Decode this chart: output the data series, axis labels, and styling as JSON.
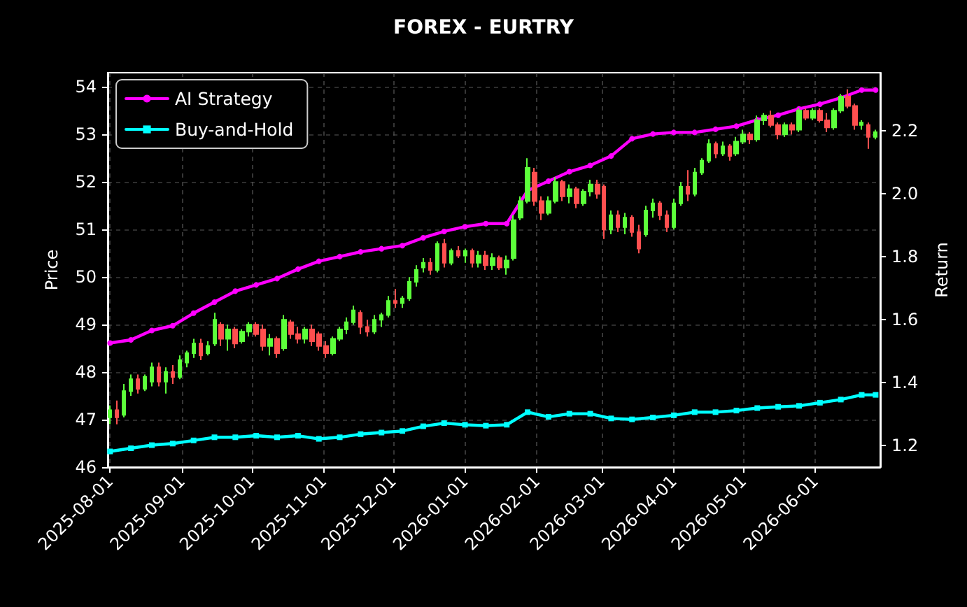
{
  "chart_data": {
    "type": "candlestick",
    "title": "FOREX - EURTRY",
    "ylabel": "Price",
    "y2label": "Return",
    "x": [
      "2025-08-01",
      "2025-08-04",
      "2025-08-07",
      "2025-08-10",
      "2025-08-13",
      "2025-08-16",
      "2025-08-19",
      "2025-08-22",
      "2025-08-25",
      "2025-08-28",
      "2025-08-31",
      "2025-09-03",
      "2025-09-06",
      "2025-09-09",
      "2025-09-12",
      "2025-09-15",
      "2025-09-18",
      "2025-09-21",
      "2025-09-24",
      "2025-09-27",
      "2025-09-30",
      "2025-10-03",
      "2025-10-06",
      "2025-10-09",
      "2025-10-12",
      "2025-10-15",
      "2025-10-18",
      "2025-10-21",
      "2025-10-24",
      "2025-10-27",
      "2025-10-30",
      "2025-11-02",
      "2025-11-05",
      "2025-11-08",
      "2025-11-11",
      "2025-11-14",
      "2025-11-17",
      "2025-11-20",
      "2025-11-23",
      "2025-11-26",
      "2025-11-29",
      "2025-12-02",
      "2025-12-05",
      "2025-12-08",
      "2025-12-11",
      "2025-12-14",
      "2025-12-17",
      "2025-12-20",
      "2025-12-23",
      "2025-12-26",
      "2025-12-29",
      "2026-01-01",
      "2026-01-04",
      "2026-01-07",
      "2026-01-10",
      "2026-01-13",
      "2026-01-16",
      "2026-01-19",
      "2026-01-22",
      "2026-01-25",
      "2026-01-28",
      "2026-01-31",
      "2026-02-03",
      "2026-02-06",
      "2026-02-09",
      "2026-02-12",
      "2026-02-15",
      "2026-02-18",
      "2026-02-21",
      "2026-02-24",
      "2026-02-27",
      "2026-03-02",
      "2026-03-05",
      "2026-03-08",
      "2026-03-11",
      "2026-03-14",
      "2026-03-17",
      "2026-03-20",
      "2026-03-23",
      "2026-03-26",
      "2026-03-29",
      "2026-04-01",
      "2026-04-04",
      "2026-04-07",
      "2026-04-10",
      "2026-04-13",
      "2026-04-16",
      "2026-04-19",
      "2026-04-22",
      "2026-04-25",
      "2026-04-28",
      "2026-05-01",
      "2026-05-04",
      "2026-05-07",
      "2026-05-10",
      "2026-05-13",
      "2026-05-16",
      "2026-05-19",
      "2026-05-22",
      "2026-05-25",
      "2026-05-28",
      "2026-05-31",
      "2026-06-03",
      "2026-06-06",
      "2026-06-09",
      "2026-06-12",
      "2026-06-15",
      "2026-06-18",
      "2026-06-21",
      "2026-06-24",
      "2026-06-27"
    ],
    "xlim": [
      "2025-07-31",
      "2026-06-29"
    ],
    "xticks": [
      "2025-08-01",
      "2025-09-01",
      "2025-10-01",
      "2025-11-01",
      "2025-12-01",
      "2026-01-01",
      "2026-02-01",
      "2026-03-01",
      "2026-04-01",
      "2026-05-01",
      "2026-06-01"
    ],
    "ylim": [
      46,
      54.3
    ],
    "yticks": [
      46,
      47,
      48,
      49,
      50,
      51,
      52,
      53,
      54
    ],
    "y2lim": [
      1.13,
      2.385
    ],
    "y2ticks": [
      1.2,
      1.4,
      1.6,
      1.8,
      {
        "value": 2.0,
        "label": "2.0"
      },
      2.2
    ],
    "grid": true,
    "legend": "top left",
    "series": [
      {
        "ohlc": [
          [
            47.05,
            47.3,
            46.9,
            47.2
          ],
          [
            47.2,
            47.4,
            46.9,
            47.05
          ],
          [
            47.1,
            47.75,
            47.05,
            47.6
          ],
          [
            47.6,
            47.95,
            47.5,
            47.85
          ],
          [
            47.85,
            47.95,
            47.55,
            47.65
          ],
          [
            47.65,
            47.95,
            47.6,
            47.9
          ],
          [
            47.8,
            48.2,
            47.7,
            48.1
          ],
          [
            48.1,
            48.2,
            47.7,
            47.8
          ],
          [
            47.8,
            48.1,
            47.55,
            48.0
          ],
          [
            48.0,
            48.15,
            47.75,
            47.9
          ],
          [
            47.9,
            48.35,
            47.85,
            48.25
          ],
          [
            48.2,
            48.45,
            48.1,
            48.4
          ],
          [
            48.4,
            48.7,
            48.3,
            48.6
          ],
          [
            48.6,
            48.7,
            48.25,
            48.35
          ],
          [
            48.4,
            48.65,
            48.35,
            48.55
          ],
          [
            48.6,
            49.25,
            48.55,
            49.1
          ],
          [
            49.0,
            49.05,
            48.55,
            48.7
          ],
          [
            48.7,
            49.0,
            48.45,
            48.9
          ],
          [
            48.9,
            48.95,
            48.5,
            48.6
          ],
          [
            48.65,
            48.9,
            48.6,
            48.85
          ],
          [
            48.85,
            49.05,
            48.75,
            49.0
          ],
          [
            49.0,
            49.05,
            48.75,
            48.8
          ],
          [
            48.9,
            49.0,
            48.45,
            48.55
          ],
          [
            48.55,
            48.8,
            48.35,
            48.7
          ],
          [
            48.7,
            48.75,
            48.3,
            48.4
          ],
          [
            48.5,
            49.2,
            48.45,
            49.1
          ],
          [
            49.05,
            49.1,
            48.7,
            48.8
          ],
          [
            48.8,
            48.95,
            48.6,
            48.7
          ],
          [
            48.7,
            48.95,
            48.6,
            48.9
          ],
          [
            48.9,
            49.0,
            48.55,
            48.65
          ],
          [
            48.8,
            48.85,
            48.45,
            48.55
          ],
          [
            48.55,
            48.65,
            48.3,
            48.4
          ],
          [
            48.4,
            48.75,
            48.35,
            48.7
          ],
          [
            48.7,
            48.95,
            48.65,
            48.9
          ],
          [
            48.9,
            49.15,
            48.8,
            49.05
          ],
          [
            49.05,
            49.4,
            49.0,
            49.3
          ],
          [
            49.25,
            49.3,
            48.8,
            48.95
          ],
          [
            48.95,
            49.1,
            48.75,
            48.85
          ],
          [
            48.85,
            49.2,
            48.8,
            49.1
          ],
          [
            49.1,
            49.25,
            48.95,
            49.2
          ],
          [
            49.2,
            49.6,
            49.15,
            49.5
          ],
          [
            49.5,
            49.75,
            49.35,
            49.45
          ],
          [
            49.45,
            49.6,
            49.35,
            49.55
          ],
          [
            49.55,
            50.0,
            49.5,
            49.9
          ],
          [
            49.9,
            50.25,
            49.8,
            50.15
          ],
          [
            50.2,
            50.4,
            50.1,
            50.3
          ],
          [
            50.3,
            50.4,
            50.05,
            50.15
          ],
          [
            50.15,
            50.75,
            50.1,
            50.7
          ],
          [
            50.7,
            50.8,
            50.2,
            50.3
          ],
          [
            50.3,
            50.6,
            50.25,
            50.55
          ],
          [
            50.55,
            50.65,
            50.4,
            50.45
          ],
          [
            50.45,
            50.6,
            50.3,
            50.55
          ],
          [
            50.55,
            50.6,
            50.2,
            50.3
          ],
          [
            50.3,
            50.55,
            50.2,
            50.45
          ],
          [
            50.45,
            50.55,
            50.15,
            50.25
          ],
          [
            50.25,
            50.5,
            50.15,
            50.4
          ],
          [
            50.4,
            50.45,
            50.15,
            50.2
          ],
          [
            50.2,
            50.45,
            50.05,
            50.35
          ],
          [
            50.4,
            51.3,
            50.35,
            51.2
          ],
          [
            51.25,
            51.7,
            51.2,
            51.6
          ],
          [
            51.6,
            52.5,
            51.55,
            52.3
          ],
          [
            52.2,
            52.3,
            51.5,
            51.6
          ],
          [
            51.6,
            51.7,
            51.2,
            51.35
          ],
          [
            51.35,
            51.7,
            51.3,
            51.6
          ],
          [
            51.6,
            52.1,
            51.55,
            52.0
          ],
          [
            52.0,
            52.05,
            51.6,
            51.7
          ],
          [
            51.7,
            51.95,
            51.55,
            51.85
          ],
          [
            51.85,
            51.9,
            51.45,
            51.55
          ],
          [
            51.55,
            51.85,
            51.5,
            51.8
          ],
          [
            51.8,
            52.05,
            51.7,
            51.95
          ],
          [
            51.95,
            52.05,
            51.65,
            51.75
          ],
          [
            51.9,
            51.95,
            50.8,
            51.0
          ],
          [
            51.0,
            51.4,
            50.9,
            51.3
          ],
          [
            51.3,
            51.4,
            50.95,
            51.05
          ],
          [
            51.05,
            51.35,
            50.9,
            51.25
          ],
          [
            51.25,
            51.3,
            50.85,
            50.95
          ],
          [
            50.95,
            51.1,
            50.5,
            50.6
          ],
          [
            50.9,
            51.5,
            50.85,
            51.4
          ],
          [
            51.4,
            51.65,
            51.25,
            51.55
          ],
          [
            51.55,
            51.6,
            51.2,
            51.3
          ],
          [
            51.3,
            51.4,
            50.95,
            51.05
          ],
          [
            51.05,
            51.65,
            51.0,
            51.55
          ],
          [
            51.55,
            52.0,
            51.5,
            51.9
          ],
          [
            51.9,
            52.25,
            51.6,
            51.75
          ],
          [
            51.75,
            52.3,
            51.7,
            52.2
          ],
          [
            52.2,
            52.5,
            52.15,
            52.45
          ],
          [
            52.45,
            52.9,
            52.4,
            52.8
          ],
          [
            52.8,
            52.85,
            52.5,
            52.6
          ],
          [
            52.6,
            52.85,
            52.55,
            52.75
          ],
          [
            52.75,
            52.8,
            52.45,
            52.55
          ],
          [
            52.6,
            52.95,
            52.55,
            52.85
          ],
          [
            52.85,
            53.1,
            52.8,
            53.0
          ],
          [
            53.0,
            53.05,
            52.8,
            52.9
          ],
          [
            52.9,
            53.4,
            52.85,
            53.3
          ],
          [
            53.3,
            53.45,
            53.2,
            53.4
          ],
          [
            53.4,
            53.5,
            53.15,
            53.2
          ],
          [
            53.2,
            53.25,
            52.9,
            53.0
          ],
          [
            53.0,
            53.25,
            52.95,
            53.2
          ],
          [
            53.2,
            53.25,
            53.0,
            53.1
          ],
          [
            53.1,
            53.55,
            53.05,
            53.5
          ],
          [
            53.5,
            53.55,
            53.3,
            53.35
          ],
          [
            53.35,
            53.55,
            53.3,
            53.5
          ],
          [
            53.5,
            53.55,
            53.25,
            53.3
          ],
          [
            53.3,
            53.45,
            53.05,
            53.15
          ],
          [
            53.15,
            53.55,
            53.1,
            53.5
          ],
          [
            53.5,
            53.85,
            53.45,
            53.8
          ],
          [
            53.8,
            53.95,
            53.55,
            53.6
          ],
          [
            53.6,
            53.65,
            53.1,
            53.2
          ],
          [
            53.2,
            53.3,
            53.1,
            53.25
          ],
          [
            53.2,
            53.25,
            52.7,
            52.95
          ],
          [
            52.95,
            53.1,
            52.9,
            53.05
          ]
        ],
        "colors": [
          "#5cff3a",
          "#ff4f4f",
          "#5cff3a",
          "#5cff3a",
          "#ff4f4f",
          "#5cff3a",
          "#5cff3a",
          "#ff4f4f",
          "#5cff3a",
          "#ff4f4f",
          "#5cff3a",
          "#5cff3a",
          "#5cff3a",
          "#ff4f4f",
          "#5cff3a",
          "#5cff3a",
          "#ff4f4f",
          "#5cff3a",
          "#ff4f4f",
          "#5cff3a",
          "#5cff3a",
          "#ff4f4f",
          "#ff4f4f",
          "#5cff3a",
          "#ff4f4f",
          "#5cff3a",
          "#ff4f4f",
          "#ff4f4f",
          "#5cff3a",
          "#ff4f4f",
          "#ff4f4f",
          "#ff4f4f",
          "#5cff3a",
          "#5cff3a",
          "#5cff3a",
          "#5cff3a",
          "#ff4f4f",
          "#ff4f4f",
          "#5cff3a",
          "#5cff3a",
          "#5cff3a",
          "#ff4f4f",
          "#5cff3a",
          "#5cff3a",
          "#5cff3a",
          "#5cff3a",
          "#ff4f4f",
          "#5cff3a",
          "#ff4f4f",
          "#5cff3a",
          "#ff4f4f",
          "#5cff3a",
          "#ff4f4f",
          "#5cff3a",
          "#ff4f4f",
          "#5cff3a",
          "#ff4f4f",
          "#5cff3a",
          "#5cff3a",
          "#5cff3a",
          "#5cff3a",
          "#ff4f4f",
          "#ff4f4f",
          "#5cff3a",
          "#5cff3a",
          "#ff4f4f",
          "#5cff3a",
          "#ff4f4f",
          "#5cff3a",
          "#5cff3a",
          "#ff4f4f",
          "#ff4f4f",
          "#5cff3a",
          "#ff4f4f",
          "#5cff3a",
          "#ff4f4f",
          "#ff4f4f",
          "#5cff3a",
          "#5cff3a",
          "#ff4f4f",
          "#ff4f4f",
          "#5cff3a",
          "#5cff3a",
          "#ff4f4f",
          "#5cff3a",
          "#5cff3a",
          "#5cff3a",
          "#ff4f4f",
          "#5cff3a",
          "#ff4f4f",
          "#5cff3a",
          "#5cff3a",
          "#ff4f4f",
          "#5cff3a",
          "#5cff3a",
          "#ff4f4f",
          "#ff4f4f",
          "#5cff3a",
          "#ff4f4f",
          "#5cff3a",
          "#ff4f4f",
          "#5cff3a",
          "#ff4f4f",
          "#ff4f4f",
          "#5cff3a",
          "#5cff3a",
          "#ff4f4f",
          "#ff4f4f",
          "#5cff3a",
          "#ff4f4f",
          "#5cff3a"
        ]
      },
      {
        "type": "line",
        "name": "AI Strategy",
        "color": "#ff00ff",
        "axis": "y2",
        "marker": "circle",
        "x": [
          "2025-08-01",
          "2025-08-10",
          "2025-08-19",
          "2025-08-28",
          "2025-09-06",
          "2025-09-15",
          "2025-09-24",
          "2025-10-03",
          "2025-10-12",
          "2025-10-21",
          "2025-10-30",
          "2025-11-08",
          "2025-11-17",
          "2025-11-26",
          "2025-12-05",
          "2025-12-14",
          "2025-12-23",
          "2026-01-01",
          "2026-01-10",
          "2026-01-19",
          "2026-01-28",
          "2026-02-06",
          "2026-02-15",
          "2026-02-24",
          "2026-03-05",
          "2026-03-14",
          "2026-03-23",
          "2026-04-01",
          "2026-04-10",
          "2026-04-19",
          "2026-04-28",
          "2026-05-07",
          "2026-05-16",
          "2026-05-25",
          "2026-06-03",
          "2026-06-12",
          "2026-06-21",
          "2026-06-27"
        ],
        "values": [
          1.525,
          1.535,
          1.565,
          1.58,
          1.62,
          1.655,
          1.69,
          1.71,
          1.73,
          1.76,
          1.785,
          1.8,
          1.815,
          1.825,
          1.835,
          1.86,
          1.88,
          1.895,
          1.905,
          1.905,
          2.01,
          2.04,
          2.07,
          2.09,
          2.12,
          2.175,
          2.19,
          2.195,
          2.195,
          2.205,
          2.215,
          2.235,
          2.25,
          2.27,
          2.285,
          2.305,
          2.33,
          2.33
        ]
      },
      {
        "type": "line",
        "name": "Buy-and-Hold",
        "color": "#00ffff",
        "axis": "y2",
        "marker": "square",
        "x": [
          "2025-08-01",
          "2025-08-10",
          "2025-08-19",
          "2025-08-28",
          "2025-09-06",
          "2025-09-15",
          "2025-09-24",
          "2025-10-03",
          "2025-10-12",
          "2025-10-21",
          "2025-10-30",
          "2025-11-08",
          "2025-11-17",
          "2025-11-26",
          "2025-12-05",
          "2025-12-14",
          "2025-12-23",
          "2026-01-01",
          "2026-01-10",
          "2026-01-19",
          "2026-01-28",
          "2026-02-06",
          "2026-02-15",
          "2026-02-24",
          "2026-03-05",
          "2026-03-14",
          "2026-03-23",
          "2026-04-01",
          "2026-04-10",
          "2026-04-19",
          "2026-04-28",
          "2026-05-07",
          "2026-05-16",
          "2026-05-25",
          "2026-06-03",
          "2026-06-12",
          "2026-06-21",
          "2026-06-27"
        ],
        "values": [
          1.18,
          1.19,
          1.2,
          1.205,
          1.215,
          1.225,
          1.225,
          1.23,
          1.225,
          1.23,
          1.22,
          1.225,
          1.235,
          1.24,
          1.245,
          1.26,
          1.27,
          1.265,
          1.262,
          1.265,
          1.305,
          1.29,
          1.3,
          1.3,
          1.285,
          1.282,
          1.288,
          1.295,
          1.305,
          1.305,
          1.31,
          1.318,
          1.322,
          1.325,
          1.335,
          1.345,
          1.36,
          1.36
        ]
      }
    ]
  }
}
